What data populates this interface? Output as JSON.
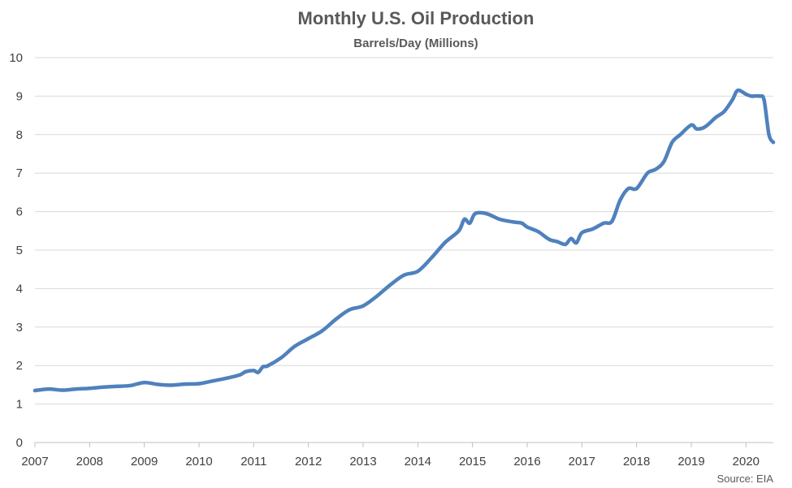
{
  "chart_data": {
    "type": "line",
    "title": "Monthly U.S. Oil Production",
    "subtitle": "Barrels/Day (Millions)",
    "xlabel": "",
    "ylabel": "",
    "source": "Source: EIA",
    "xlim": [
      2007,
      2020.5
    ],
    "ylim": [
      0,
      10
    ],
    "x_ticks": [
      "2007",
      "2008",
      "2009",
      "2010",
      "2011",
      "2012",
      "2013",
      "2014",
      "2015",
      "2016",
      "2017",
      "2018",
      "2019",
      "2020"
    ],
    "y_ticks": [
      "0",
      "1",
      "2",
      "3",
      "4",
      "5",
      "6",
      "7",
      "8",
      "9",
      "10"
    ],
    "grid": true,
    "legend": "none",
    "line_color": "#4f81bd",
    "series": [
      {
        "x": [
          2007.0,
          2007.25,
          2007.5,
          2007.75,
          2008.0,
          2008.25,
          2008.5,
          2008.75,
          2009.0,
          2009.25,
          2009.5,
          2009.75,
          2010.0,
          2010.25,
          2010.5,
          2010.75,
          2010.85,
          2011.0,
          2011.08,
          2011.17,
          2011.25,
          2011.5,
          2011.75,
          2012.0,
          2012.25,
          2012.5,
          2012.75,
          2013.0,
          2013.25,
          2013.5,
          2013.75,
          2014.0,
          2014.25,
          2014.5,
          2014.75,
          2014.85,
          2014.95,
          2015.05,
          2015.25,
          2015.5,
          2015.75,
          2015.9,
          2016.0,
          2016.2,
          2016.4,
          2016.55,
          2016.7,
          2016.8,
          2016.9,
          2017.0,
          2017.2,
          2017.4,
          2017.55,
          2017.7,
          2017.85,
          2018.0,
          2018.2,
          2018.35,
          2018.5,
          2018.65,
          2018.8,
          2019.0,
          2019.1,
          2019.25,
          2019.45,
          2019.6,
          2019.75,
          2019.85,
          2020.0,
          2020.1,
          2020.25,
          2020.33,
          2020.42,
          2020.5
        ],
        "values": [
          1.35,
          1.39,
          1.36,
          1.39,
          1.41,
          1.44,
          1.46,
          1.48,
          1.56,
          1.51,
          1.49,
          1.52,
          1.53,
          1.6,
          1.67,
          1.76,
          1.84,
          1.87,
          1.82,
          1.97,
          1.99,
          2.2,
          2.5,
          2.7,
          2.9,
          3.2,
          3.45,
          3.55,
          3.8,
          4.1,
          4.35,
          4.45,
          4.8,
          5.2,
          5.5,
          5.8,
          5.7,
          5.95,
          5.95,
          5.8,
          5.73,
          5.7,
          5.6,
          5.48,
          5.28,
          5.22,
          5.15,
          5.3,
          5.19,
          5.45,
          5.55,
          5.7,
          5.75,
          6.3,
          6.6,
          6.6,
          7.0,
          7.1,
          7.3,
          7.8,
          8.0,
          8.25,
          8.15,
          8.2,
          8.45,
          8.6,
          8.9,
          9.15,
          9.05,
          9.0,
          9.0,
          8.9,
          8.0,
          7.8
        ]
      }
    ]
  }
}
